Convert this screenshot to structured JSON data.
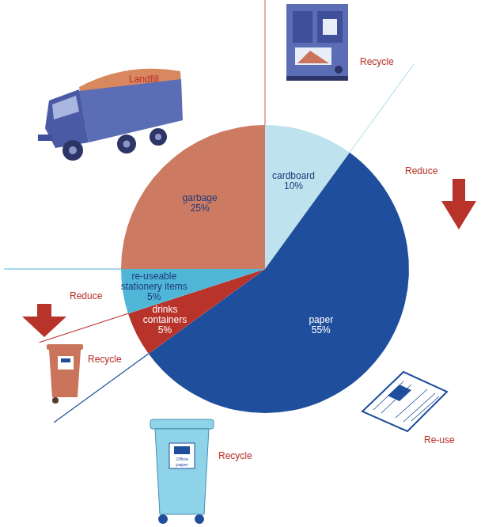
{
  "chart_data": {
    "type": "pie",
    "categories": [
      "cardboard",
      "paper",
      "drinks containers",
      "re-useable stationery items",
      "garbage"
    ],
    "values": [
      10,
      55,
      5,
      5,
      25
    ],
    "value_labels": [
      "10%",
      "55%",
      "5%",
      "5%",
      "25%"
    ],
    "colors": [
      "#bfe3ee",
      "#1f4e9c",
      "#b8332a",
      "#4fb6d8",
      "#cd7a62"
    ],
    "data_labels": true,
    "annotations": [
      {
        "text": "Recycle",
        "slice": "cardboard"
      },
      {
        "text": "Reduce",
        "slice": "paper"
      },
      {
        "text": "Re-use",
        "slice": "paper"
      },
      {
        "text": "Recycle",
        "slice": "paper"
      },
      {
        "text": "Office paper",
        "slice": "paper"
      },
      {
        "text": "Recycle",
        "slice": "drinks containers"
      },
      {
        "text": "Reduce",
        "slice": "re-useable stationery items"
      },
      {
        "text": "Landfill",
        "slice": "garbage"
      }
    ]
  }
}
